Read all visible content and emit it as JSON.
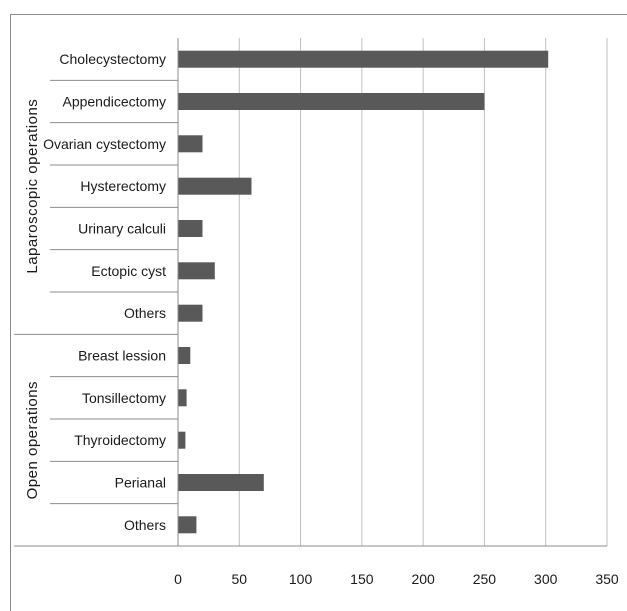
{
  "chart_data": {
    "type": "bar",
    "orientation": "horizontal",
    "title": "",
    "xlabel": "",
    "ylabel": "",
    "xlim": [
      0,
      350
    ],
    "xticks": [
      0,
      50,
      100,
      150,
      200,
      250,
      300,
      350
    ],
    "grid": "vertical",
    "bar_color": "#595959",
    "groups": [
      {
        "name": "Laparoscopic operations",
        "categories": [
          "Cholecystectomy",
          "Appendicectomy",
          "Ovarian cystectomy",
          "Hysterectomy",
          "Urinary calculi",
          "Ectopic cyst",
          "Others"
        ],
        "values": [
          302,
          250,
          20,
          60,
          20,
          30,
          20
        ]
      },
      {
        "name": "Open operations",
        "categories": [
          "Breast lession",
          "Tonsillectomy",
          "Thyroidectomy",
          "Perianal",
          "Others"
        ],
        "values": [
          10,
          7,
          6,
          70,
          15
        ]
      }
    ]
  }
}
